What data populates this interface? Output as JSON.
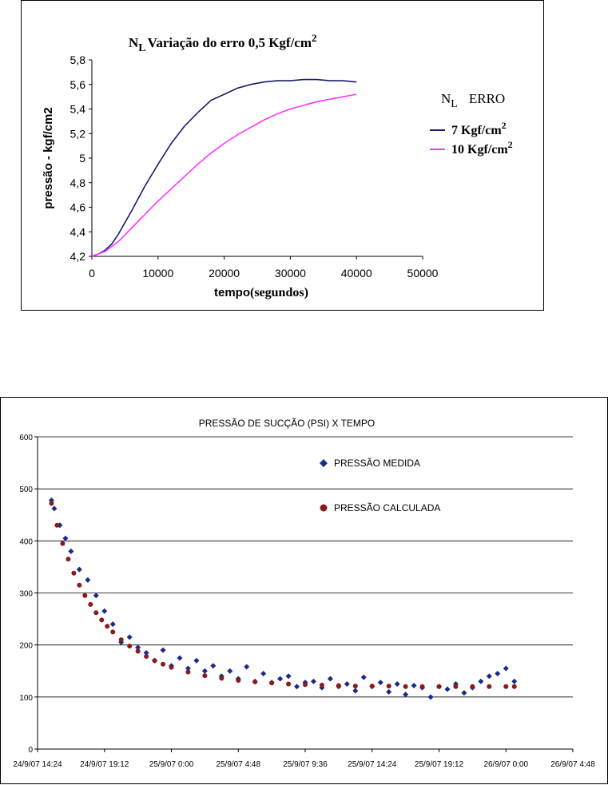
{
  "chart_data": [
    {
      "type": "line",
      "title": "Variação do erro 0,5 Kgf/cm²",
      "title_parts": {
        "N": "N",
        "sub": "L",
        "text": "Variação do erro 0,5 Kgf/cm",
        "sup": "2"
      },
      "xlabel": "tempo",
      "xlabel_suffix": "(segundos)",
      "ylabel": "pressão - kgf/cm2",
      "xlim": [
        0,
        50000
      ],
      "ylim": [
        4.2,
        5.8
      ],
      "x_ticks": [
        "0",
        "10000",
        "20000",
        "30000",
        "40000",
        "50000"
      ],
      "y_ticks": [
        "4,2",
        "4,4",
        "4,6",
        "4,8",
        "5",
        "5,2",
        "5,4",
        "5,6",
        "5,8"
      ],
      "grid": false,
      "legend_position": "right",
      "legend_title": {
        "N": "N",
        "sub": "L",
        "text": "ERRO"
      },
      "series": [
        {
          "name": "7  Kgf/cm²",
          "label_text": "7  Kgf/cm",
          "label_sup": "2",
          "color": "#1a1a6e",
          "x": [
            0,
            1000,
            2000,
            3000,
            4000,
            6000,
            8000,
            10000,
            12000,
            14000,
            16000,
            18000,
            20000,
            22000,
            24000,
            26000,
            28000,
            30000,
            32000,
            34000,
            36000,
            38000,
            40000
          ],
          "y": [
            4.2,
            4.22,
            4.25,
            4.3,
            4.38,
            4.57,
            4.77,
            4.95,
            5.12,
            5.26,
            5.37,
            5.47,
            5.52,
            5.57,
            5.6,
            5.62,
            5.63,
            5.63,
            5.64,
            5.64,
            5.63,
            5.63,
            5.62
          ]
        },
        {
          "name": "10 Kgf/cm²",
          "label_text": "10 Kgf/cm",
          "label_sup": "2",
          "color": "#ff33ff",
          "x": [
            0,
            2000,
            4000,
            6000,
            8000,
            10000,
            12000,
            14000,
            16000,
            18000,
            20000,
            22000,
            24000,
            26000,
            28000,
            30000,
            32000,
            34000,
            36000,
            38000,
            40000
          ],
          "y": [
            4.2,
            4.24,
            4.32,
            4.43,
            4.54,
            4.65,
            4.75,
            4.85,
            4.95,
            5.04,
            5.12,
            5.19,
            5.25,
            5.31,
            5.36,
            5.4,
            5.43,
            5.46,
            5.48,
            5.5,
            5.52
          ]
        }
      ]
    },
    {
      "type": "scatter",
      "title": "PRESSÃO DE SUCÇÃO (PSI) X TEMPO",
      "xlabel": "",
      "ylabel": "",
      "x_ticks": [
        "24/9/07 14:24",
        "24/9/07 19:12",
        "25/9/07 0:00",
        "25/9/07 4:48",
        "25/9/07 9:36",
        "25/9/07 14:24",
        "25/9/07 19:12",
        "26/9/07 0:00",
        "26/9/07 4:48"
      ],
      "xlim": [
        "24/9/07 14:24",
        "26/9/07 4:48"
      ],
      "ylim": [
        0,
        600
      ],
      "y_ticks": [
        "0",
        "100",
        "200",
        "300",
        "400",
        "500",
        "600"
      ],
      "grid": "horizontal",
      "legend_position": "top-right",
      "series": [
        {
          "name": "PRESSÃO MEDIDA",
          "marker": "diamond",
          "color": "#1a2a8c",
          "x": [
            "24/9/07 15:24",
            "24/9/07 15:36",
            "24/9/07 16:00",
            "24/9/07 16:24",
            "24/9/07 16:48",
            "24/9/07 17:24",
            "24/9/07 18:00",
            "24/9/07 18:36",
            "24/9/07 19:12",
            "24/9/07 19:48",
            "24/9/07 20:24",
            "24/9/07 21:00",
            "24/9/07 21:36",
            "24/9/07 22:12",
            "24/9/07 22:48",
            "24/9/07 23:24",
            "25/9/07 0:00",
            "25/9/07 0:36",
            "25/9/07 1:12",
            "25/9/07 1:48",
            "25/9/07 2:24",
            "25/9/07 3:00",
            "25/9/07 3:36",
            "25/9/07 4:12",
            "25/9/07 4:48",
            "25/9/07 5:24",
            "25/9/07 6:00",
            "25/9/07 6:36",
            "25/9/07 7:12",
            "25/9/07 7:48",
            "25/9/07 8:24",
            "25/9/07 9:00",
            "25/9/07 9:36",
            "25/9/07 10:12",
            "25/9/07 10:48",
            "25/9/07 11:24",
            "25/9/07 12:00",
            "25/9/07 12:36",
            "25/9/07 13:12",
            "25/9/07 13:48",
            "25/9/07 14:24",
            "25/9/07 15:00",
            "25/9/07 15:36",
            "25/9/07 16:12",
            "25/9/07 16:48",
            "25/9/07 17:24",
            "25/9/07 18:00",
            "25/9/07 18:36",
            "25/9/07 19:12",
            "25/9/07 19:48",
            "25/9/07 20:24",
            "25/9/07 21:00",
            "25/9/07 21:36",
            "25/9/07 22:12",
            "25/9/07 22:48",
            "25/9/07 23:24",
            "26/9/07 0:00",
            "26/9/07 0:36"
          ],
          "y": [
            478,
            462,
            430,
            405,
            380,
            345,
            325,
            295,
            265,
            240,
            205,
            215,
            195,
            185,
            170,
            190,
            160,
            175,
            155,
            170,
            150,
            160,
            140,
            150,
            135,
            158,
            130,
            145,
            128,
            135,
            140,
            120,
            128,
            130,
            118,
            135,
            120,
            125,
            112,
            138,
            120,
            128,
            110,
            125,
            105,
            122,
            118,
            100,
            120,
            115,
            125,
            108,
            118,
            130,
            140,
            145,
            155,
            130
          ]
        },
        {
          "name": "PRESSÃO CALCULADA",
          "marker": "circle",
          "color": "#8b1a1a",
          "x": [
            "24/9/07 15:24",
            "24/9/07 15:48",
            "24/9/07 16:12",
            "24/9/07 16:36",
            "24/9/07 17:00",
            "24/9/07 17:24",
            "24/9/07 17:48",
            "24/9/07 18:12",
            "24/9/07 18:36",
            "24/9/07 19:00",
            "24/9/07 19:24",
            "24/9/07 19:48",
            "24/9/07 20:24",
            "24/9/07 21:00",
            "24/9/07 21:36",
            "24/9/07 22:12",
            "24/9/07 22:48",
            "24/9/07 23:24",
            "25/9/07 0:00",
            "25/9/07 1:12",
            "25/9/07 2:24",
            "25/9/07 3:36",
            "25/9/07 4:48",
            "25/9/07 6:00",
            "25/9/07 7:12",
            "25/9/07 8:24",
            "25/9/07 9:36",
            "25/9/07 10:48",
            "25/9/07 12:00",
            "25/9/07 13:12",
            "25/9/07 14:24",
            "25/9/07 15:36",
            "25/9/07 16:48",
            "25/9/07 18:00",
            "25/9/07 19:12",
            "25/9/07 20:24",
            "25/9/07 21:36",
            "25/9/07 22:48",
            "26/9/07 0:00",
            "26/9/07 0:36"
          ],
          "y": [
            472,
            430,
            395,
            365,
            338,
            315,
            295,
            278,
            262,
            248,
            236,
            225,
            210,
            198,
            188,
            178,
            170,
            163,
            157,
            148,
            141,
            136,
            132,
            129,
            127,
            125,
            124,
            123,
            122,
            121,
            121,
            121,
            120,
            120,
            120,
            120,
            120,
            120,
            120,
            120
          ]
        }
      ]
    }
  ]
}
